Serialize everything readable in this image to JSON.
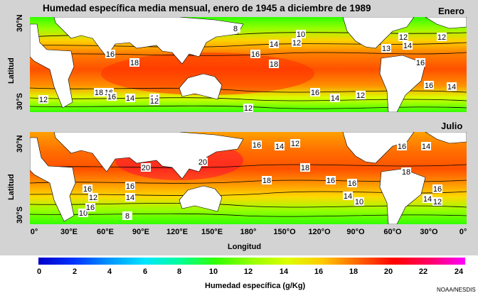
{
  "title": "Humedad específica media mensual, enero de 1945 a diciembre de 1989",
  "panels": [
    {
      "label": "Enero",
      "ylabel": "Latitud",
      "lat_ticks": [
        "30°N",
        "30°S"
      ],
      "contour_labels": [
        "8",
        "10",
        "12",
        "12",
        "12",
        "13",
        "14",
        "14",
        "16",
        "16",
        "16",
        "16",
        "16",
        "18",
        "18",
        "18",
        "16",
        "16",
        "14",
        "14",
        "14",
        "12",
        "12",
        "14",
        "12",
        "12"
      ]
    },
    {
      "label": "Julio",
      "ylabel": "Latitud",
      "lat_ticks": [
        "30°N",
        "30°S"
      ],
      "contour_labels": [
        "16",
        "14",
        "12",
        "16",
        "14",
        "20",
        "20",
        "16",
        "16",
        "18",
        "18",
        "18",
        "16",
        "16",
        "16",
        "14",
        "14",
        "12",
        "10",
        "14",
        "12",
        "10",
        "8",
        "16"
      ]
    }
  ],
  "x_ticks": [
    "0°",
    "30°E",
    "60°E",
    "90°E",
    "120°E",
    "150°E",
    "180°",
    "150°O",
    "120°O",
    "90°O",
    "60°O",
    "30°O",
    "0°"
  ],
  "x_label": "Longitud",
  "colorbar": {
    "ticks": [
      "0",
      "2",
      "4",
      "6",
      "8",
      "10",
      "12",
      "14",
      "16",
      "18",
      "20",
      "22",
      "24"
    ],
    "title": "Humedad específica (g/Kg)",
    "colors": [
      "#0000c8",
      "#0032ff",
      "#0096ff",
      "#00e6ff",
      "#00ff96",
      "#32ff00",
      "#96ff00",
      "#dcff00",
      "#ffc800",
      "#ff6400",
      "#ff0000",
      "#ff0064",
      "#ff00ff"
    ]
  },
  "credit": "NOAA/NESDIS"
}
